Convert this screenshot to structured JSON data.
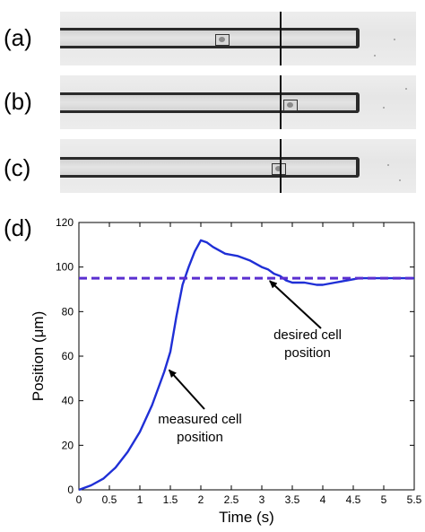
{
  "panels": [
    {
      "label": "(a)"
    },
    {
      "label": "(b)"
    },
    {
      "label": "(c)"
    },
    {
      "label": "(d)"
    }
  ],
  "chart_data": {
    "type": "line",
    "xlabel": "Time (s)",
    "ylabel": "Position  (μm)",
    "xlim": [
      0,
      5.5
    ],
    "ylim": [
      0,
      120
    ],
    "xticks": [
      "0",
      "0.5",
      "1",
      "1.5",
      "2",
      "2.5",
      "3",
      "3.5",
      "4",
      "4.5",
      "5",
      "5.5"
    ],
    "yticks": [
      "0",
      "20",
      "40",
      "60",
      "80",
      "100",
      "120"
    ],
    "grid": false,
    "series": [
      {
        "name": "measured cell position",
        "style": "solid",
        "color": "#1f2fd6",
        "x": [
          0,
          0.2,
          0.4,
          0.6,
          0.8,
          1.0,
          1.2,
          1.4,
          1.5,
          1.6,
          1.7,
          1.8,
          1.9,
          2.0,
          2.1,
          2.2,
          2.4,
          2.6,
          2.8,
          3.0,
          3.1,
          3.2,
          3.3,
          3.4,
          3.5,
          3.7,
          3.9,
          4.0,
          4.2,
          4.4,
          4.6,
          5.0,
          5.5
        ],
        "y": [
          0,
          2,
          5,
          10,
          17,
          26,
          38,
          53,
          62,
          78,
          92,
          100,
          107,
          112,
          111,
          109,
          106,
          105,
          103,
          100,
          99,
          97,
          96,
          94,
          93,
          93,
          92,
          92,
          93,
          94,
          95,
          95,
          95
        ]
      },
      {
        "name": "desired cell position",
        "style": "dashed",
        "color": "#5a2fd0",
        "x": [
          0,
          5.5
        ],
        "y": [
          95,
          95
        ]
      }
    ],
    "annotations": [
      {
        "text_lines": [
          "desired cell",
          "position"
        ],
        "arrow_to": [
          3.1,
          95
        ]
      },
      {
        "text_lines": [
          "measured cell",
          "position"
        ],
        "arrow_to": [
          1.45,
          55
        ]
      }
    ]
  }
}
